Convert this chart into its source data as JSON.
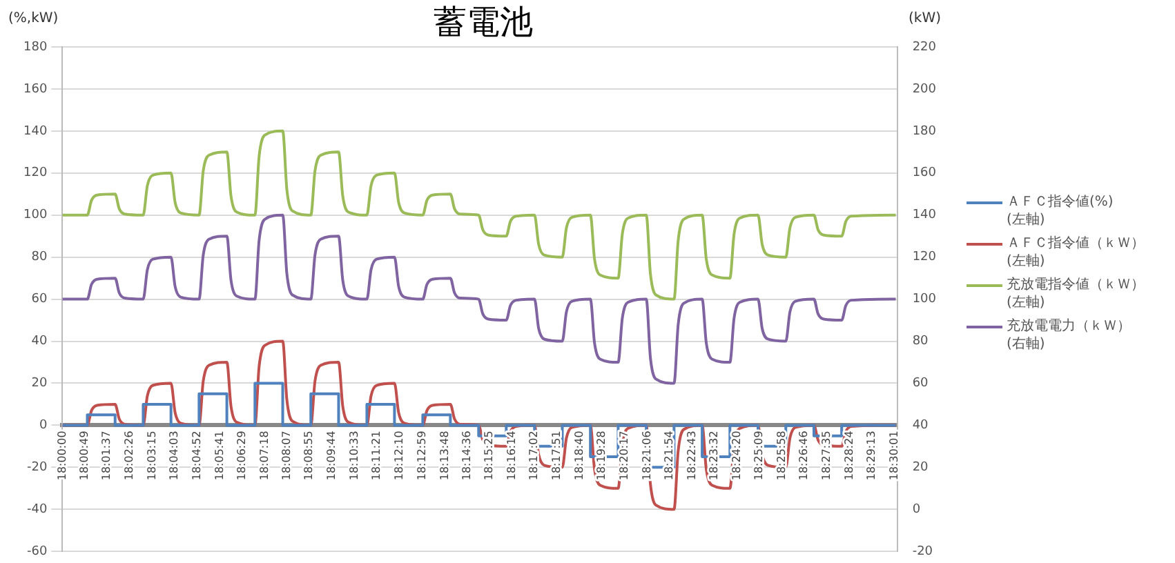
{
  "chart_data": {
    "type": "line",
    "title": "蓄電池",
    "ylabel": "(%,kW)",
    "y2label": "(kW)",
    "x": [
      18,
      18.015,
      18.0175,
      18.0208,
      18.0317,
      18.0342,
      18.0375,
      18.0486,
      18.0511,
      18.0544,
      18.0653,
      18.0678,
      18.0711,
      18.0822,
      18.0847,
      18.0881,
      18.0989,
      18.1014,
      18.1047,
      18.1158,
      18.1183,
      18.1217,
      18.1325,
      18.135,
      18.1383,
      18.1494,
      18.1519,
      18.1553,
      18.1661,
      18.1686,
      18.1719,
      18.1831,
      18.1856,
      18.1889,
      18.1997,
      18.2022,
      18.2056,
      18.2167,
      18.2192,
      18.2225,
      18.2333,
      18.2358,
      18.2392,
      18.2503,
      18.2528,
      18.2561,
      18.2669,
      18.2694,
      18.2728,
      18.2839,
      18.2864,
      18.2897,
      18.3006,
      18.3031,
      18.3064,
      18.3175,
      18.32,
      18.3233,
      18.3342,
      18.3367,
      18.34,
      18.3511,
      18.3536,
      18.3569,
      18.3678,
      18.3703,
      18.3736,
      18.3847,
      18.3872,
      18.3906,
      18.4014,
      18.4039,
      18.4072,
      18.4183,
      18.4208,
      18.4242,
      18.435,
      18.4375,
      18.4408,
      18.4519,
      18.4544,
      18.4578,
      18.4686,
      18.4711,
      18.4744,
      18.5011
    ],
    "series": [
      {
        "name": "ＡＦＣ指令値(%)\n(左軸)",
        "type": "step",
        "color": "#4f81bd",
        "values": [
          0,
          5,
          5,
          5,
          0,
          0,
          0,
          10,
          10,
          10,
          0,
          0,
          0,
          15,
          15,
          15,
          0,
          0,
          0,
          20,
          20,
          20,
          0,
          0,
          0,
          15,
          15,
          15,
          0,
          0,
          0,
          10,
          10,
          10,
          0,
          0,
          0,
          5,
          5,
          5,
          0,
          0,
          0,
          -5,
          -5,
          -5,
          0,
          0,
          0,
          -10,
          -10,
          -10,
          0,
          0,
          0,
          -15,
          -15,
          -15,
          0,
          0,
          0,
          -20,
          -20,
          -20,
          0,
          0,
          0,
          -15,
          -15,
          -15,
          0,
          0,
          0,
          -10,
          -10,
          -10,
          0,
          0,
          0,
          -5,
          -5,
          -5,
          0,
          0,
          0,
          0
        ]
      },
      {
        "name": "ＡＦＣ指令値（ｋＷ）\n(左軸)",
        "color": "#c0504d",
        "values": [
          0,
          0,
          7,
          9.5,
          10,
          3,
          0.5,
          0,
          14,
          19,
          20,
          6,
          1,
          0,
          21,
          28.5,
          30,
          9,
          1.5,
          0,
          28,
          38,
          40,
          12,
          2,
          0,
          21,
          28.5,
          30,
          9,
          1.5,
          0,
          14,
          19,
          20,
          6,
          1,
          0,
          7,
          9.5,
          10,
          3,
          0.5,
          0,
          -7,
          -9.5,
          -10,
          -3,
          -0.5,
          0,
          -14,
          -19,
          -20,
          -6,
          -1,
          0,
          -21,
          -28.5,
          -30,
          -9,
          -1.5,
          0,
          -28,
          -38,
          -40,
          -12,
          -2,
          0,
          -21,
          -28.5,
          -30,
          -9,
          -1.5,
          0,
          -14,
          -19,
          -20,
          -6,
          -1,
          0,
          -7,
          -9.5,
          -10,
          -3,
          -0.5,
          0
        ]
      },
      {
        "name": "充放電指令値（ｋＷ）\n(左軸)",
        "color": "#9bbb59",
        "values": [
          100,
          100,
          107,
          109.5,
          110,
          103,
          100.5,
          100,
          114,
          119,
          120,
          106,
          101,
          100,
          121,
          128.5,
          130,
          109,
          101.5,
          100,
          128,
          138,
          140,
          112,
          102,
          100,
          121,
          128.5,
          130,
          109,
          101.5,
          100,
          114,
          119,
          120,
          106,
          101,
          100,
          107,
          109.5,
          110,
          103,
          100.5,
          100,
          93,
          90.5,
          90,
          97,
          99.5,
          100,
          86,
          81,
          80,
          94,
          99,
          100,
          79,
          71.5,
          70,
          91,
          98.5,
          100,
          72,
          62,
          60,
          88,
          98,
          100,
          79,
          71.5,
          70,
          91,
          98.5,
          100,
          86,
          81,
          80,
          94,
          99,
          100,
          93,
          90.5,
          90,
          97,
          99.5,
          100
        ]
      },
      {
        "name": "充放電電力（ｋＷ）\n(右軸)",
        "color": "#8064a2",
        "axis": "y2",
        "values": [
          100,
          100,
          107,
          109.5,
          110,
          103,
          100.5,
          100,
          114,
          119,
          120,
          106,
          101,
          100,
          121,
          128.5,
          130,
          109,
          101.5,
          100,
          128,
          138,
          140,
          112,
          102,
          100,
          121,
          128.5,
          130,
          109,
          101.5,
          100,
          114,
          119,
          120,
          106,
          101,
          100,
          107,
          109.5,
          110,
          103,
          100.5,
          100,
          93,
          90.5,
          90,
          97,
          99.5,
          100,
          86,
          81,
          80,
          94,
          99,
          100,
          79,
          71.5,
          70,
          91,
          98.5,
          100,
          72,
          62,
          60,
          88,
          98,
          100,
          79,
          71.5,
          70,
          91,
          98.5,
          100,
          86,
          81,
          80,
          94,
          99,
          100,
          93,
          90.5,
          90,
          97,
          99.5,
          100
        ]
      }
    ],
    "xlim": [
      18,
      18.502
    ],
    "xticks": [
      {
        "value": 18,
        "label": "18:00:00"
      },
      {
        "value": 18.0136,
        "label": "18:00:49"
      },
      {
        "value": 18.0269,
        "label": "18:01:37"
      },
      {
        "value": 18.0406,
        "label": "18:02:26"
      },
      {
        "value": 18.0542,
        "label": "18:03:15"
      },
      {
        "value": 18.0675,
        "label": "18:04:03"
      },
      {
        "value": 18.0811,
        "label": "18:04:52"
      },
      {
        "value": 18.0947,
        "label": "18:05:41"
      },
      {
        "value": 18.1081,
        "label": "18:06:29"
      },
      {
        "value": 18.1217,
        "label": "18:07:18"
      },
      {
        "value": 18.1353,
        "label": "18:08:07"
      },
      {
        "value": 18.1486,
        "label": "18:08:55"
      },
      {
        "value": 18.1622,
        "label": "18:09:44"
      },
      {
        "value": 18.1758,
        "label": "18:10:33"
      },
      {
        "value": 18.1892,
        "label": "18:11:21"
      },
      {
        "value": 18.2028,
        "label": "18:12:10"
      },
      {
        "value": 18.2164,
        "label": "18:12:59"
      },
      {
        "value": 18.23,
        "label": "18:13:48"
      },
      {
        "value": 18.2433,
        "label": "18:14:36"
      },
      {
        "value": 18.2569,
        "label": "18:15:25"
      },
      {
        "value": 18.2706,
        "label": "18:16:14"
      },
      {
        "value": 18.2839,
        "label": "18:17:02"
      },
      {
        "value": 18.2975,
        "label": "18:17:51"
      },
      {
        "value": 18.3111,
        "label": "18:18:40"
      },
      {
        "value": 18.3244,
        "label": "18:19:28"
      },
      {
        "value": 18.3381,
        "label": "18:20:17"
      },
      {
        "value": 18.3517,
        "label": "18:21:06"
      },
      {
        "value": 18.365,
        "label": "18:21:54"
      },
      {
        "value": 18.3786,
        "label": "18:22:43"
      },
      {
        "value": 18.3922,
        "label": "18:23:32"
      },
      {
        "value": 18.4056,
        "label": "18:24:20"
      },
      {
        "value": 18.4192,
        "label": "18:25:09"
      },
      {
        "value": 18.4328,
        "label": "18:25:58"
      },
      {
        "value": 18.4461,
        "label": "18:26:46"
      },
      {
        "value": 18.4597,
        "label": "18:27:35"
      },
      {
        "value": 18.4733,
        "label": "18:28:24"
      },
      {
        "value": 18.4869,
        "label": "18:29:13"
      },
      {
        "value": 18.5003,
        "label": "18:30:01"
      }
    ],
    "ylim": [
      -60,
      180
    ],
    "yticks": [
      -60,
      -40,
      -20,
      0,
      20,
      40,
      60,
      80,
      100,
      120,
      140,
      160,
      180
    ],
    "y2lim": [
      -20,
      220
    ],
    "y2ticks": [
      -20,
      0,
      20,
      40,
      60,
      80,
      100,
      120,
      140,
      160,
      180,
      200,
      220
    ],
    "grid": "y",
    "legend": "right",
    "marker": "none",
    "line_style": "solid"
  }
}
